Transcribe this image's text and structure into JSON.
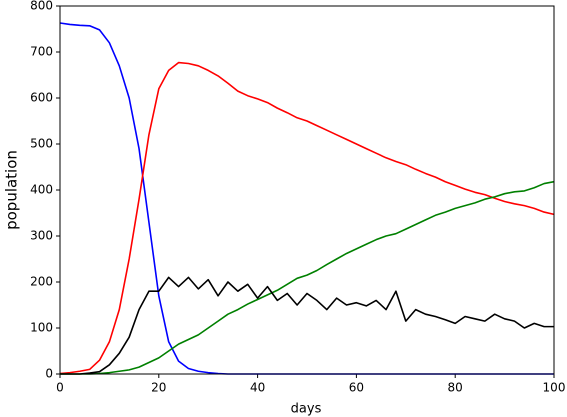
{
  "chart_data": {
    "type": "line",
    "x_label": "days",
    "y_label": "population",
    "x": [
      0,
      2,
      4,
      6,
      8,
      10,
      12,
      14,
      16,
      18,
      20,
      22,
      24,
      26,
      28,
      30,
      32,
      34,
      36,
      38,
      40,
      42,
      44,
      46,
      48,
      50,
      52,
      54,
      56,
      58,
      60,
      62,
      64,
      66,
      68,
      70,
      72,
      74,
      76,
      78,
      80,
      82,
      84,
      86,
      88,
      90,
      92,
      94,
      96,
      98,
      100
    ],
    "series": [
      {
        "color": "#0000ff",
        "values": [
          763,
          760,
          758,
          757,
          748,
          720,
          670,
          600,
          490,
          330,
          170,
          70,
          28,
          12,
          6,
          3,
          1,
          0,
          0,
          0,
          0,
          0,
          0,
          0,
          0,
          0,
          0,
          0,
          0,
          0,
          0,
          0,
          0,
          0,
          0,
          0,
          0,
          0,
          0,
          0,
          0,
          0,
          0,
          0,
          0,
          0,
          0,
          0,
          0,
          0,
          0
        ]
      },
      {
        "color": "#ff0000",
        "values": [
          1,
          3,
          6,
          10,
          30,
          70,
          140,
          250,
          380,
          520,
          620,
          660,
          677,
          675,
          670,
          660,
          648,
          632,
          615,
          605,
          598,
          590,
          578,
          568,
          557,
          550,
          540,
          530,
          520,
          510,
          500,
          490,
          480,
          470,
          462,
          455,
          445,
          436,
          428,
          418,
          410,
          402,
          395,
          390,
          382,
          375,
          370,
          366,
          360,
          352,
          347
        ]
      },
      {
        "color": "#008000",
        "values": [
          0,
          0,
          0,
          0,
          1,
          3,
          6,
          9,
          15,
          25,
          35,
          50,
          65,
          75,
          85,
          100,
          115,
          130,
          140,
          152,
          162,
          172,
          182,
          195,
          208,
          215,
          225,
          238,
          250,
          262,
          272,
          282,
          292,
          300,
          305,
          315,
          325,
          335,
          345,
          352,
          360,
          366,
          372,
          380,
          385,
          392,
          396,
          398,
          405,
          414,
          418
        ]
      },
      {
        "color": "#000000",
        "values": [
          0,
          0,
          0,
          2,
          5,
          20,
          45,
          80,
          140,
          180,
          180,
          210,
          190,
          210,
          185,
          205,
          170,
          200,
          180,
          195,
          165,
          190,
          160,
          175,
          150,
          175,
          160,
          140,
          165,
          150,
          155,
          148,
          160,
          140,
          180,
          115,
          140,
          130,
          125,
          118,
          110,
          125,
          120,
          115,
          130,
          120,
          115,
          100,
          110,
          103,
          103
        ]
      }
    ],
    "xlim": [
      0,
      100
    ],
    "xticks": [
      0,
      20,
      40,
      60,
      80,
      100
    ],
    "ylim": [
      0,
      800
    ],
    "yticks": [
      0,
      100,
      200,
      300,
      400,
      500,
      600,
      700,
      800
    ],
    "grid": false
  }
}
